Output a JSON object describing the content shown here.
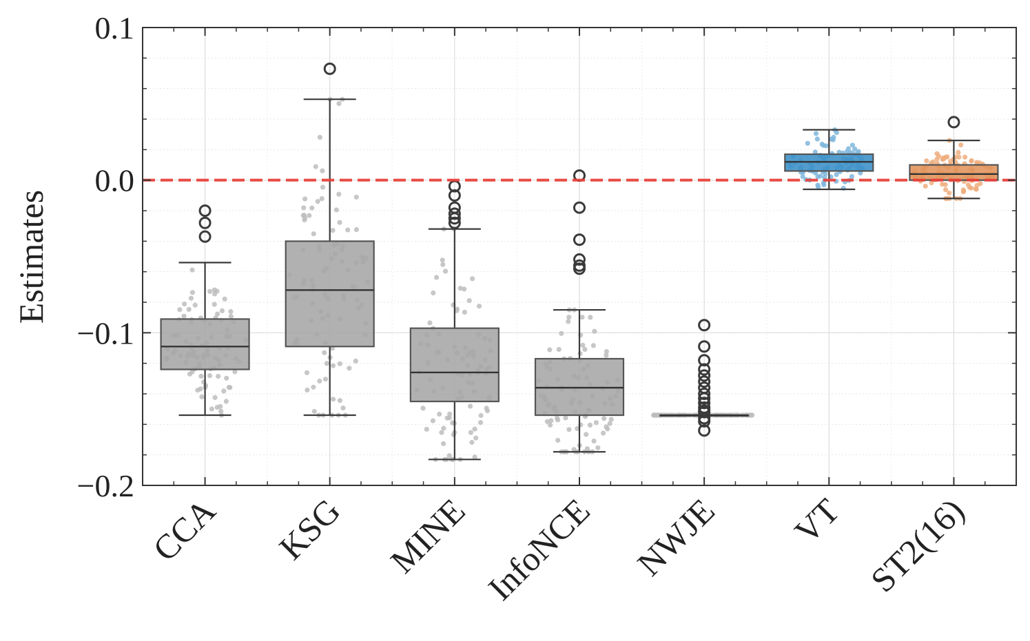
{
  "chart_data": {
    "type": "box",
    "ylabel": "Estimates",
    "xlabel": "",
    "ylim": [
      -0.2,
      0.1
    ],
    "yticks": [
      0.1,
      0.0,
      -0.1,
      -0.2
    ],
    "ytick_labels": [
      "0.1",
      "0.0",
      "−0.1",
      "−0.2"
    ],
    "grid": true,
    "reference_line": {
      "y": 0.0,
      "style": "dashed",
      "color": "#e8413a"
    },
    "series": [
      {
        "name": "CCA",
        "color": "#a6a6a6",
        "dot_color": "#bdbdbd",
        "whisker_low": -0.154,
        "q1": -0.124,
        "median": -0.109,
        "q3": -0.091,
        "whisker_high": -0.054,
        "outliers": [
          -0.02,
          -0.028,
          -0.037
        ]
      },
      {
        "name": "KSG",
        "color": "#a6a6a6",
        "dot_color": "#bdbdbd",
        "whisker_low": -0.154,
        "q1": -0.109,
        "median": -0.072,
        "q3": -0.04,
        "whisker_high": 0.053,
        "outliers": [
          0.073
        ]
      },
      {
        "name": "MINE",
        "color": "#a6a6a6",
        "dot_color": "#bdbdbd",
        "whisker_low": -0.183,
        "q1": -0.145,
        "median": -0.126,
        "q3": -0.097,
        "whisker_high": -0.032,
        "outliers": [
          -0.004,
          -0.01,
          -0.018,
          -0.022,
          -0.025,
          -0.028
        ]
      },
      {
        "name": "InfoNCE",
        "color": "#a6a6a6",
        "dot_color": "#bdbdbd",
        "whisker_low": -0.178,
        "q1": -0.154,
        "median": -0.136,
        "q3": -0.117,
        "whisker_high": -0.085,
        "outliers": [
          0.003,
          -0.018,
          -0.039,
          -0.052,
          -0.056,
          -0.058
        ]
      },
      {
        "name": "NWJE",
        "color": "#a6a6a6",
        "dot_color": "#bdbdbd",
        "whisker_low": -0.154,
        "q1": -0.154,
        "median": -0.154,
        "q3": -0.154,
        "whisker_high": -0.154,
        "outliers": [
          -0.095,
          -0.109,
          -0.118,
          -0.124,
          -0.128,
          -0.132,
          -0.136,
          -0.14,
          -0.143,
          -0.146,
          -0.149,
          -0.151,
          -0.152,
          -0.156,
          -0.158,
          -0.164
        ]
      },
      {
        "name": "VT",
        "color": "#3a8fc7",
        "dot_color": "#7fb6dc",
        "whisker_low": -0.006,
        "q1": 0.006,
        "median": 0.012,
        "q3": 0.017,
        "whisker_high": 0.033,
        "outliers": []
      },
      {
        "name": "ST2(16)",
        "color": "#e0935a",
        "dot_color": "#eeae7f",
        "whisker_low": -0.012,
        "q1": 0.0,
        "median": 0.004,
        "q3": 0.01,
        "whisker_high": 0.026,
        "outliers": [
          0.038
        ]
      }
    ]
  }
}
